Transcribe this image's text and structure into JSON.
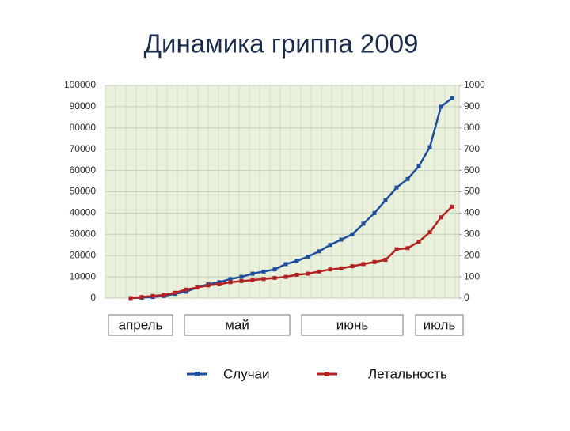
{
  "chart_data": {
    "type": "line",
    "title": "Динамика гриппа 2009",
    "periods": [
      "апрель",
      "май",
      "июнь",
      "июль"
    ],
    "series": [
      {
        "name": "Случаи",
        "color": "#1f4e9c",
        "axis": "y",
        "values": [
          0,
          200,
          500,
          1000,
          2000,
          3000,
          5000,
          6500,
          7500,
          9000,
          10000,
          11500,
          12500,
          13500,
          16000,
          17500,
          19500,
          22000,
          25000,
          27500,
          30000,
          35000,
          40000,
          46000,
          52000,
          56000,
          62000,
          71000,
          90000,
          94000
        ]
      },
      {
        "name": "Летальность",
        "color": "#b22222",
        "axis": "y2",
        "values": [
          0,
          5,
          10,
          15,
          25,
          40,
          50,
          60,
          65,
          75,
          80,
          85,
          90,
          95,
          100,
          110,
          115,
          125,
          135,
          140,
          150,
          160,
          170,
          180,
          230,
          235,
          265,
          310,
          380,
          430
        ]
      }
    ],
    "ylim": [
      0,
      100000
    ],
    "yticks": [
      0,
      10000,
      20000,
      30000,
      40000,
      50000,
      60000,
      70000,
      80000,
      90000,
      100000
    ],
    "y2lim": [
      0,
      1000
    ],
    "y2ticks": [
      0,
      100,
      200,
      300,
      400,
      500,
      600,
      700,
      800,
      900,
      1000
    ],
    "grid": true
  }
}
